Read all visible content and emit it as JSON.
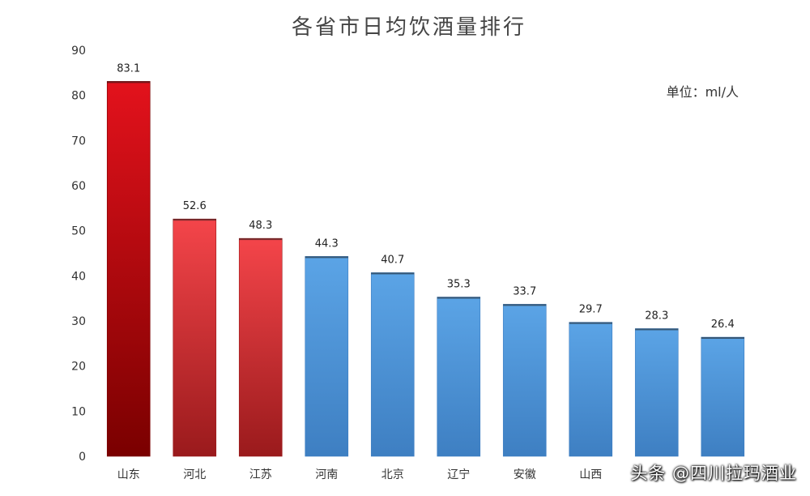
{
  "chart_data": {
    "type": "bar",
    "title": "各省市日均饮酒量排行",
    "unit_label": "单位：ml/人",
    "categories": [
      "山东",
      "河北",
      "江苏",
      "河南",
      "北京",
      "辽宁",
      "安徽",
      "山西",
      "",
      ""
    ],
    "values": [
      83.1,
      52.6,
      48.3,
      44.3,
      40.7,
      35.3,
      33.7,
      29.7,
      28.3,
      26.4
    ],
    "value_labels": [
      "83.1",
      "52.6",
      "48.3",
      "44.3",
      "40.7",
      "35.3",
      "33.7",
      "29.7",
      "28.3",
      "26.4"
    ],
    "bar_colors": [
      "dark-red",
      "red",
      "red",
      "blue",
      "blue",
      "blue",
      "blue",
      "blue",
      "blue",
      "blue"
    ],
    "colors": {
      "dark-red": [
        "#e3121c",
        "#7a0000"
      ],
      "red": [
        "#f4454a",
        "#9a1a1c"
      ],
      "blue": [
        "#5ba4e6",
        "#3e7fc2"
      ],
      "title": "#444444",
      "axis_text": "#333333"
    },
    "ylim": [
      0,
      90
    ],
    "yticks": [
      0,
      10,
      20,
      30,
      40,
      50,
      60,
      70,
      80,
      90
    ],
    "grid": false
  },
  "watermark": "头条 @四川拉玛酒业"
}
